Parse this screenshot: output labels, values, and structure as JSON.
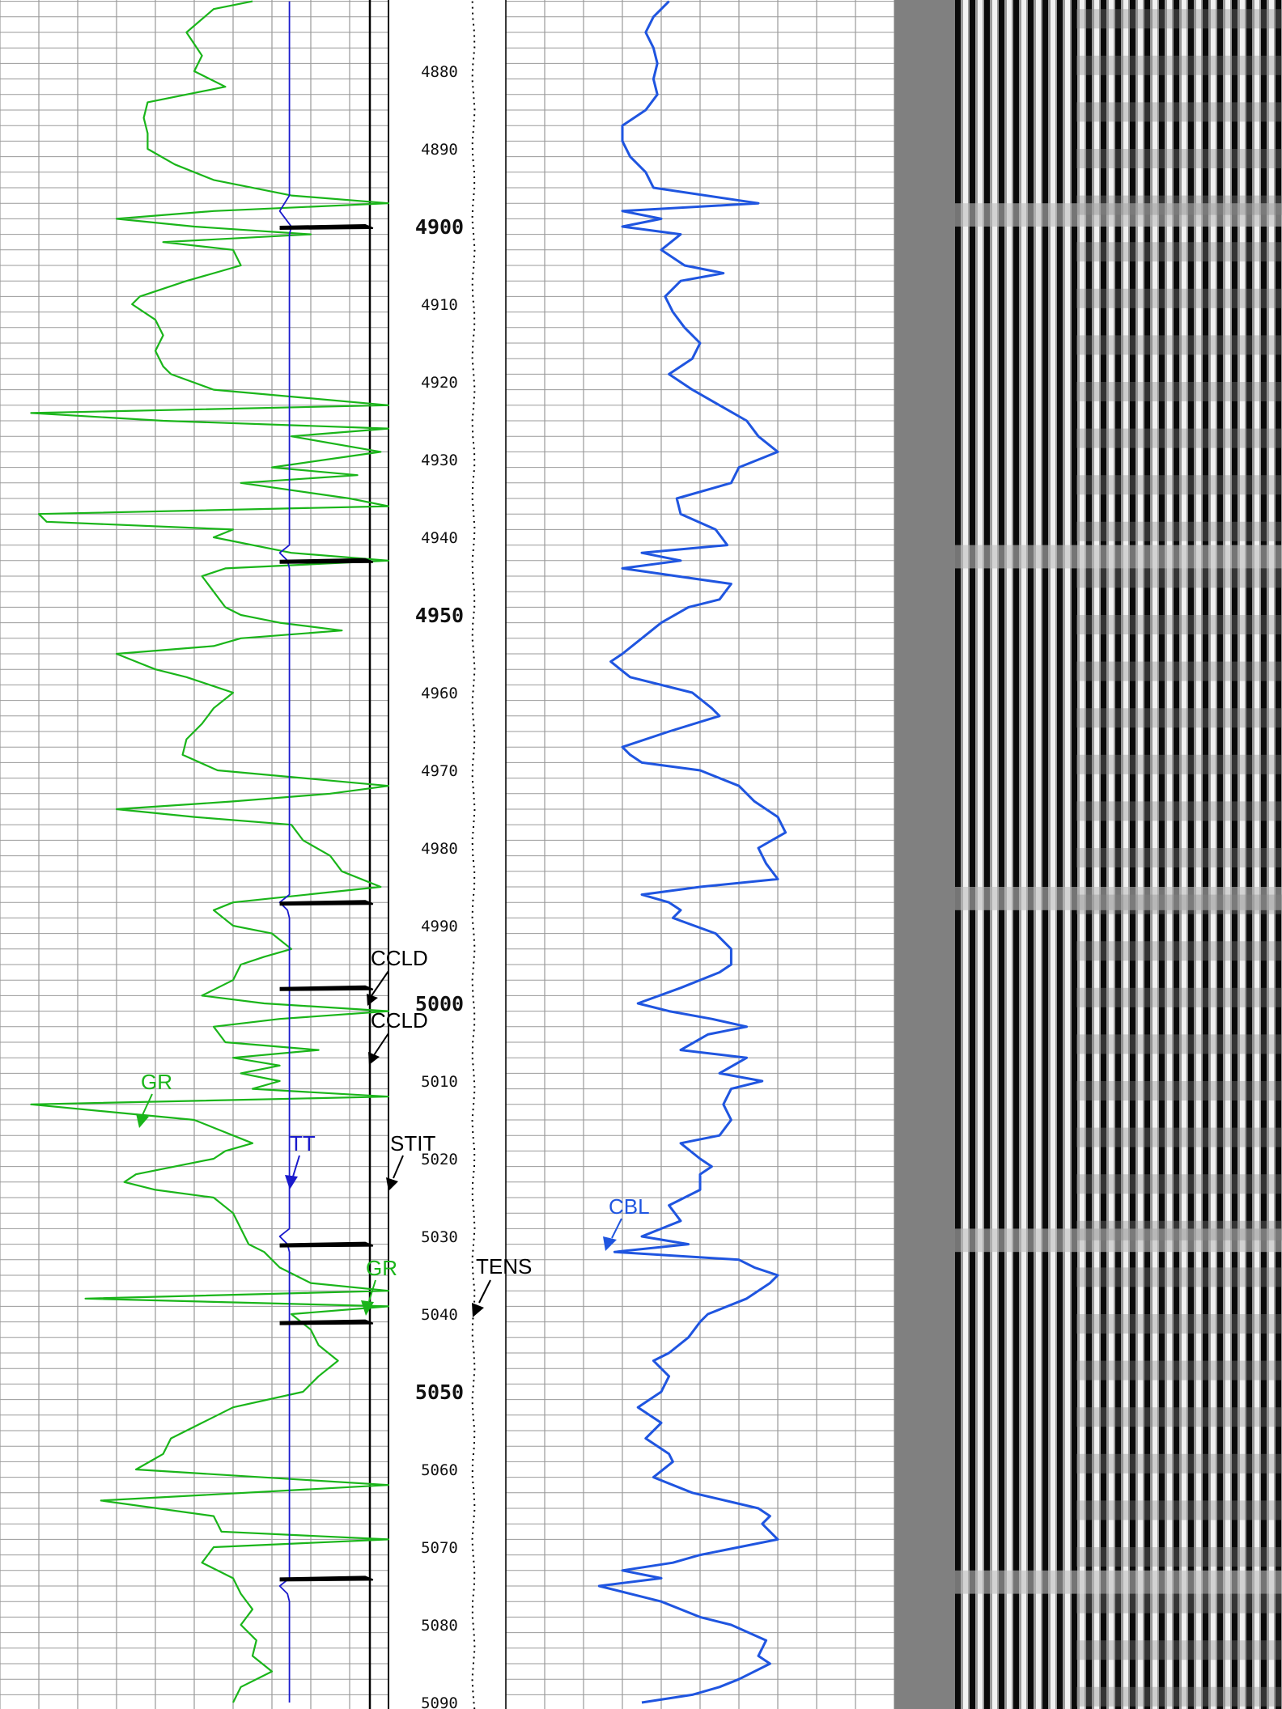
{
  "chart_data": {
    "type": "line",
    "subtype": "well-log",
    "depth_range": [
      4871,
      5090
    ],
    "depth_labels": {
      "minor": [
        "4880",
        "4890",
        "4910",
        "4920",
        "4930",
        "4940",
        "4960",
        "4970",
        "4980",
        "4990",
        "5010",
        "5020",
        "5030",
        "5040",
        "5060",
        "5070",
        "5080",
        "5090"
      ],
      "major": [
        "4900",
        "4950",
        "5000",
        "5050"
      ]
    },
    "labels": {
      "ccld_1": "CCLD",
      "ccld_2": "CCLD",
      "gr_1": "GR",
      "tt": "TT",
      "stit": "STIT",
      "cbl": "CBL",
      "gr_2": "GR",
      "tens": "TENS"
    },
    "colors": {
      "gr": "#1ab51a",
      "tt": "#1a1acc",
      "cbl": "#1f55e0",
      "ccl": "#000000",
      "grid_major": "#000000",
      "grid_minor": "#9a9a9a"
    },
    "series": [
      {
        "name": "GR",
        "track_scale": [
          0,
          1
        ],
        "points": [
          [
            4871,
            0.65
          ],
          [
            4872,
            0.55
          ],
          [
            4875,
            0.48
          ],
          [
            4878,
            0.52
          ],
          [
            4880,
            0.5
          ],
          [
            4882,
            0.58
          ],
          [
            4884,
            0.38
          ],
          [
            4886,
            0.37
          ],
          [
            4888,
            0.38
          ],
          [
            4890,
            0.38
          ],
          [
            4892,
            0.45
          ],
          [
            4894,
            0.55
          ],
          [
            4896,
            0.75
          ],
          [
            4897,
            1.0
          ],
          [
            4898,
            0.55
          ],
          [
            4899,
            0.3
          ],
          [
            4900,
            0.5
          ],
          [
            4901,
            0.8
          ],
          [
            4902,
            0.42
          ],
          [
            4903,
            0.6
          ],
          [
            4905,
            0.62
          ],
          [
            4907,
            0.48
          ],
          [
            4909,
            0.36
          ],
          [
            4910,
            0.34
          ],
          [
            4912,
            0.4
          ],
          [
            4914,
            0.42
          ],
          [
            4916,
            0.4
          ],
          [
            4918,
            0.42
          ],
          [
            4919,
            0.44
          ],
          [
            4921,
            0.55
          ],
          [
            4923,
            1.0
          ],
          [
            4924,
            0.08
          ],
          [
            4925,
            0.42
          ],
          [
            4926,
            1.0
          ],
          [
            4927,
            0.75
          ],
          [
            4929,
            0.98
          ],
          [
            4931,
            0.7
          ],
          [
            4932,
            0.92
          ],
          [
            4933,
            0.62
          ],
          [
            4935,
            0.9
          ],
          [
            4936,
            1.0
          ],
          [
            4937,
            0.1
          ],
          [
            4938,
            0.12
          ],
          [
            4939,
            0.6
          ],
          [
            4940,
            0.55
          ],
          [
            4942,
            0.75
          ],
          [
            4943,
            1.0
          ],
          [
            4944,
            0.58
          ],
          [
            4945,
            0.52
          ],
          [
            4947,
            0.55
          ],
          [
            4949,
            0.58
          ],
          [
            4950,
            0.62
          ],
          [
            4951,
            0.72
          ],
          [
            4952,
            0.88
          ],
          [
            4953,
            0.62
          ],
          [
            4954,
            0.55
          ],
          [
            4955,
            0.3
          ],
          [
            4956,
            0.35
          ],
          [
            4957,
            0.4
          ],
          [
            4958,
            0.48
          ],
          [
            4960,
            0.6
          ],
          [
            4962,
            0.55
          ],
          [
            4964,
            0.52
          ],
          [
            4966,
            0.48
          ],
          [
            4968,
            0.47
          ],
          [
            4970,
            0.56
          ],
          [
            4972,
            1.0
          ],
          [
            4973,
            0.85
          ],
          [
            4974,
            0.6
          ],
          [
            4975,
            0.3
          ],
          [
            4976,
            0.5
          ],
          [
            4977,
            0.75
          ],
          [
            4979,
            0.78
          ],
          [
            4981,
            0.85
          ],
          [
            4983,
            0.88
          ],
          [
            4985,
            0.98
          ],
          [
            4987,
            0.6
          ],
          [
            4988,
            0.55
          ],
          [
            4990,
            0.6
          ],
          [
            4991,
            0.7
          ],
          [
            4993,
            0.75
          ],
          [
            4994,
            0.68
          ],
          [
            4995,
            0.62
          ],
          [
            4997,
            0.6
          ],
          [
            4999,
            0.52
          ],
          [
            5000,
            0.68
          ],
          [
            5001,
            1.0
          ],
          [
            5002,
            0.72
          ],
          [
            5003,
            0.55
          ],
          [
            5005,
            0.58
          ],
          [
            5006,
            0.82
          ],
          [
            5007,
            0.6
          ],
          [
            5008,
            0.72
          ],
          [
            5009,
            0.62
          ],
          [
            5010,
            0.72
          ],
          [
            5011,
            0.65
          ],
          [
            5012,
            1.0
          ],
          [
            5013,
            0.08
          ],
          [
            5015,
            0.5
          ],
          [
            5016,
            0.55
          ],
          [
            5018,
            0.65
          ],
          [
            5019,
            0.58
          ],
          [
            5020,
            0.55
          ],
          [
            5021,
            0.45
          ],
          [
            5022,
            0.35
          ],
          [
            5023,
            0.32
          ],
          [
            5024,
            0.4
          ],
          [
            5025,
            0.55
          ],
          [
            5027,
            0.6
          ],
          [
            5029,
            0.62
          ],
          [
            5031,
            0.64
          ],
          [
            5032,
            0.68
          ],
          [
            5034,
            0.72
          ],
          [
            5036,
            0.8
          ],
          [
            5037,
            1.0
          ],
          [
            5038,
            0.22
          ],
          [
            5039,
            1.0
          ],
          [
            5040,
            0.75
          ],
          [
            5042,
            0.8
          ],
          [
            5044,
            0.82
          ],
          [
            5046,
            0.87
          ],
          [
            5048,
            0.82
          ],
          [
            5050,
            0.78
          ],
          [
            5052,
            0.6
          ],
          [
            5054,
            0.52
          ],
          [
            5056,
            0.44
          ],
          [
            5058,
            0.42
          ],
          [
            5060,
            0.35
          ],
          [
            5062,
            1.0
          ],
          [
            5064,
            0.26
          ],
          [
            5066,
            0.55
          ],
          [
            5068,
            0.57
          ],
          [
            5069,
            1.0
          ],
          [
            5070,
            0.55
          ],
          [
            5072,
            0.52
          ],
          [
            5074,
            0.6
          ],
          [
            5076,
            0.62
          ],
          [
            5078,
            0.65
          ],
          [
            5080,
            0.62
          ],
          [
            5082,
            0.66
          ],
          [
            5084,
            0.65
          ],
          [
            5086,
            0.7
          ],
          [
            5088,
            0.62
          ],
          [
            5090,
            0.6
          ]
        ]
      },
      {
        "name": "TT",
        "track_scale": [
          0,
          1
        ],
        "points": [
          [
            4871,
            0.745
          ],
          [
            4896,
            0.745
          ],
          [
            4898,
            0.72
          ],
          [
            4899,
            0.735
          ],
          [
            4900,
            0.75
          ],
          [
            4901,
            0.745
          ],
          [
            4941,
            0.745
          ],
          [
            4942,
            0.72
          ],
          [
            4943,
            0.74
          ],
          [
            4944,
            0.745
          ],
          [
            4986,
            0.745
          ],
          [
            4987,
            0.72
          ],
          [
            4988,
            0.74
          ],
          [
            4989,
            0.745
          ],
          [
            5029,
            0.745
          ],
          [
            5030,
            0.72
          ],
          [
            5031,
            0.74
          ],
          [
            5032,
            0.745
          ],
          [
            5074,
            0.745
          ],
          [
            5075,
            0.72
          ],
          [
            5076,
            0.74
          ],
          [
            5077,
            0.745
          ],
          [
            5090,
            0.745
          ]
        ]
      },
      {
        "name": "CBL",
        "track_scale": [
          0,
          1
        ],
        "points": [
          [
            4871,
            0.42
          ],
          [
            4873,
            0.38
          ],
          [
            4875,
            0.36
          ],
          [
            4877,
            0.38
          ],
          [
            4879,
            0.39
          ],
          [
            4881,
            0.38
          ],
          [
            4883,
            0.39
          ],
          [
            4885,
            0.36
          ],
          [
            4887,
            0.3
          ],
          [
            4889,
            0.3
          ],
          [
            4891,
            0.32
          ],
          [
            4893,
            0.36
          ],
          [
            4895,
            0.38
          ],
          [
            4897,
            0.65
          ],
          [
            4898,
            0.3
          ],
          [
            4899,
            0.4
          ],
          [
            4900,
            0.3
          ],
          [
            4901,
            0.45
          ],
          [
            4903,
            0.4
          ],
          [
            4905,
            0.46
          ],
          [
            4906,
            0.56
          ],
          [
            4907,
            0.45
          ],
          [
            4909,
            0.41
          ],
          [
            4911,
            0.43
          ],
          [
            4913,
            0.46
          ],
          [
            4915,
            0.5
          ],
          [
            4917,
            0.48
          ],
          [
            4919,
            0.42
          ],
          [
            4921,
            0.48
          ],
          [
            4923,
            0.55
          ],
          [
            4925,
            0.62
          ],
          [
            4927,
            0.65
          ],
          [
            4929,
            0.7
          ],
          [
            4931,
            0.6
          ],
          [
            4933,
            0.58
          ],
          [
            4935,
            0.44
          ],
          [
            4937,
            0.45
          ],
          [
            4939,
            0.54
          ],
          [
            4941,
            0.57
          ],
          [
            4942,
            0.35
          ],
          [
            4943,
            0.45
          ],
          [
            4944,
            0.3
          ],
          [
            4946,
            0.58
          ],
          [
            4948,
            0.55
          ],
          [
            4949,
            0.47
          ],
          [
            4951,
            0.4
          ],
          [
            4953,
            0.35
          ],
          [
            4955,
            0.3
          ],
          [
            4956,
            0.27
          ],
          [
            4958,
            0.32
          ],
          [
            4960,
            0.48
          ],
          [
            4962,
            0.53
          ],
          [
            4963,
            0.55
          ],
          [
            4965,
            0.42
          ],
          [
            4967,
            0.3
          ],
          [
            4968,
            0.32
          ],
          [
            4969,
            0.35
          ],
          [
            4970,
            0.5
          ],
          [
            4972,
            0.6
          ],
          [
            4974,
            0.64
          ],
          [
            4976,
            0.7
          ],
          [
            4978,
            0.72
          ],
          [
            4980,
            0.65
          ],
          [
            4982,
            0.67
          ],
          [
            4984,
            0.7
          ],
          [
            4985,
            0.5
          ],
          [
            4986,
            0.35
          ],
          [
            4987,
            0.42
          ],
          [
            4988,
            0.45
          ],
          [
            4989,
            0.43
          ],
          [
            4991,
            0.54
          ],
          [
            4993,
            0.58
          ],
          [
            4995,
            0.58
          ],
          [
            4996,
            0.55
          ],
          [
            4998,
            0.45
          ],
          [
            5000,
            0.34
          ],
          [
            5001,
            0.42
          ],
          [
            5002,
            0.53
          ],
          [
            5003,
            0.62
          ],
          [
            5004,
            0.52
          ],
          [
            5006,
            0.45
          ],
          [
            5007,
            0.62
          ],
          [
            5009,
            0.55
          ],
          [
            5010,
            0.66
          ],
          [
            5011,
            0.58
          ],
          [
            5013,
            0.56
          ],
          [
            5015,
            0.58
          ],
          [
            5017,
            0.55
          ],
          [
            5018,
            0.45
          ],
          [
            5020,
            0.5
          ],
          [
            5021,
            0.53
          ],
          [
            5022,
            0.5
          ],
          [
            5024,
            0.5
          ],
          [
            5026,
            0.42
          ],
          [
            5028,
            0.45
          ],
          [
            5029,
            0.4
          ],
          [
            5030,
            0.35
          ],
          [
            5031,
            0.47
          ],
          [
            5032,
            0.28
          ],
          [
            5033,
            0.6
          ],
          [
            5034,
            0.64
          ],
          [
            5035,
            0.7
          ],
          [
            5036,
            0.68
          ],
          [
            5038,
            0.62
          ],
          [
            5040,
            0.52
          ],
          [
            5041,
            0.5
          ],
          [
            5043,
            0.47
          ],
          [
            5045,
            0.42
          ],
          [
            5046,
            0.38
          ],
          [
            5048,
            0.42
          ],
          [
            5050,
            0.4
          ],
          [
            5052,
            0.34
          ],
          [
            5054,
            0.4
          ],
          [
            5056,
            0.36
          ],
          [
            5058,
            0.42
          ],
          [
            5059,
            0.43
          ],
          [
            5061,
            0.38
          ],
          [
            5063,
            0.48
          ],
          [
            5065,
            0.65
          ],
          [
            5066,
            0.68
          ],
          [
            5067,
            0.66
          ],
          [
            5069,
            0.7
          ],
          [
            5070,
            0.6
          ],
          [
            5071,
            0.5
          ],
          [
            5072,
            0.43
          ],
          [
            5073,
            0.3
          ],
          [
            5074,
            0.4
          ],
          [
            5075,
            0.24
          ],
          [
            5077,
            0.4
          ],
          [
            5079,
            0.5
          ],
          [
            5080,
            0.58
          ],
          [
            5082,
            0.67
          ],
          [
            5084,
            0.65
          ],
          [
            5085,
            0.68
          ],
          [
            5087,
            0.6
          ],
          [
            5088,
            0.55
          ],
          [
            5089,
            0.48
          ],
          [
            5090,
            0.35
          ]
        ]
      }
    ],
    "ccl_kicks": [
      4900,
      4943,
      4987,
      4998,
      5031,
      5041,
      5074
    ]
  }
}
